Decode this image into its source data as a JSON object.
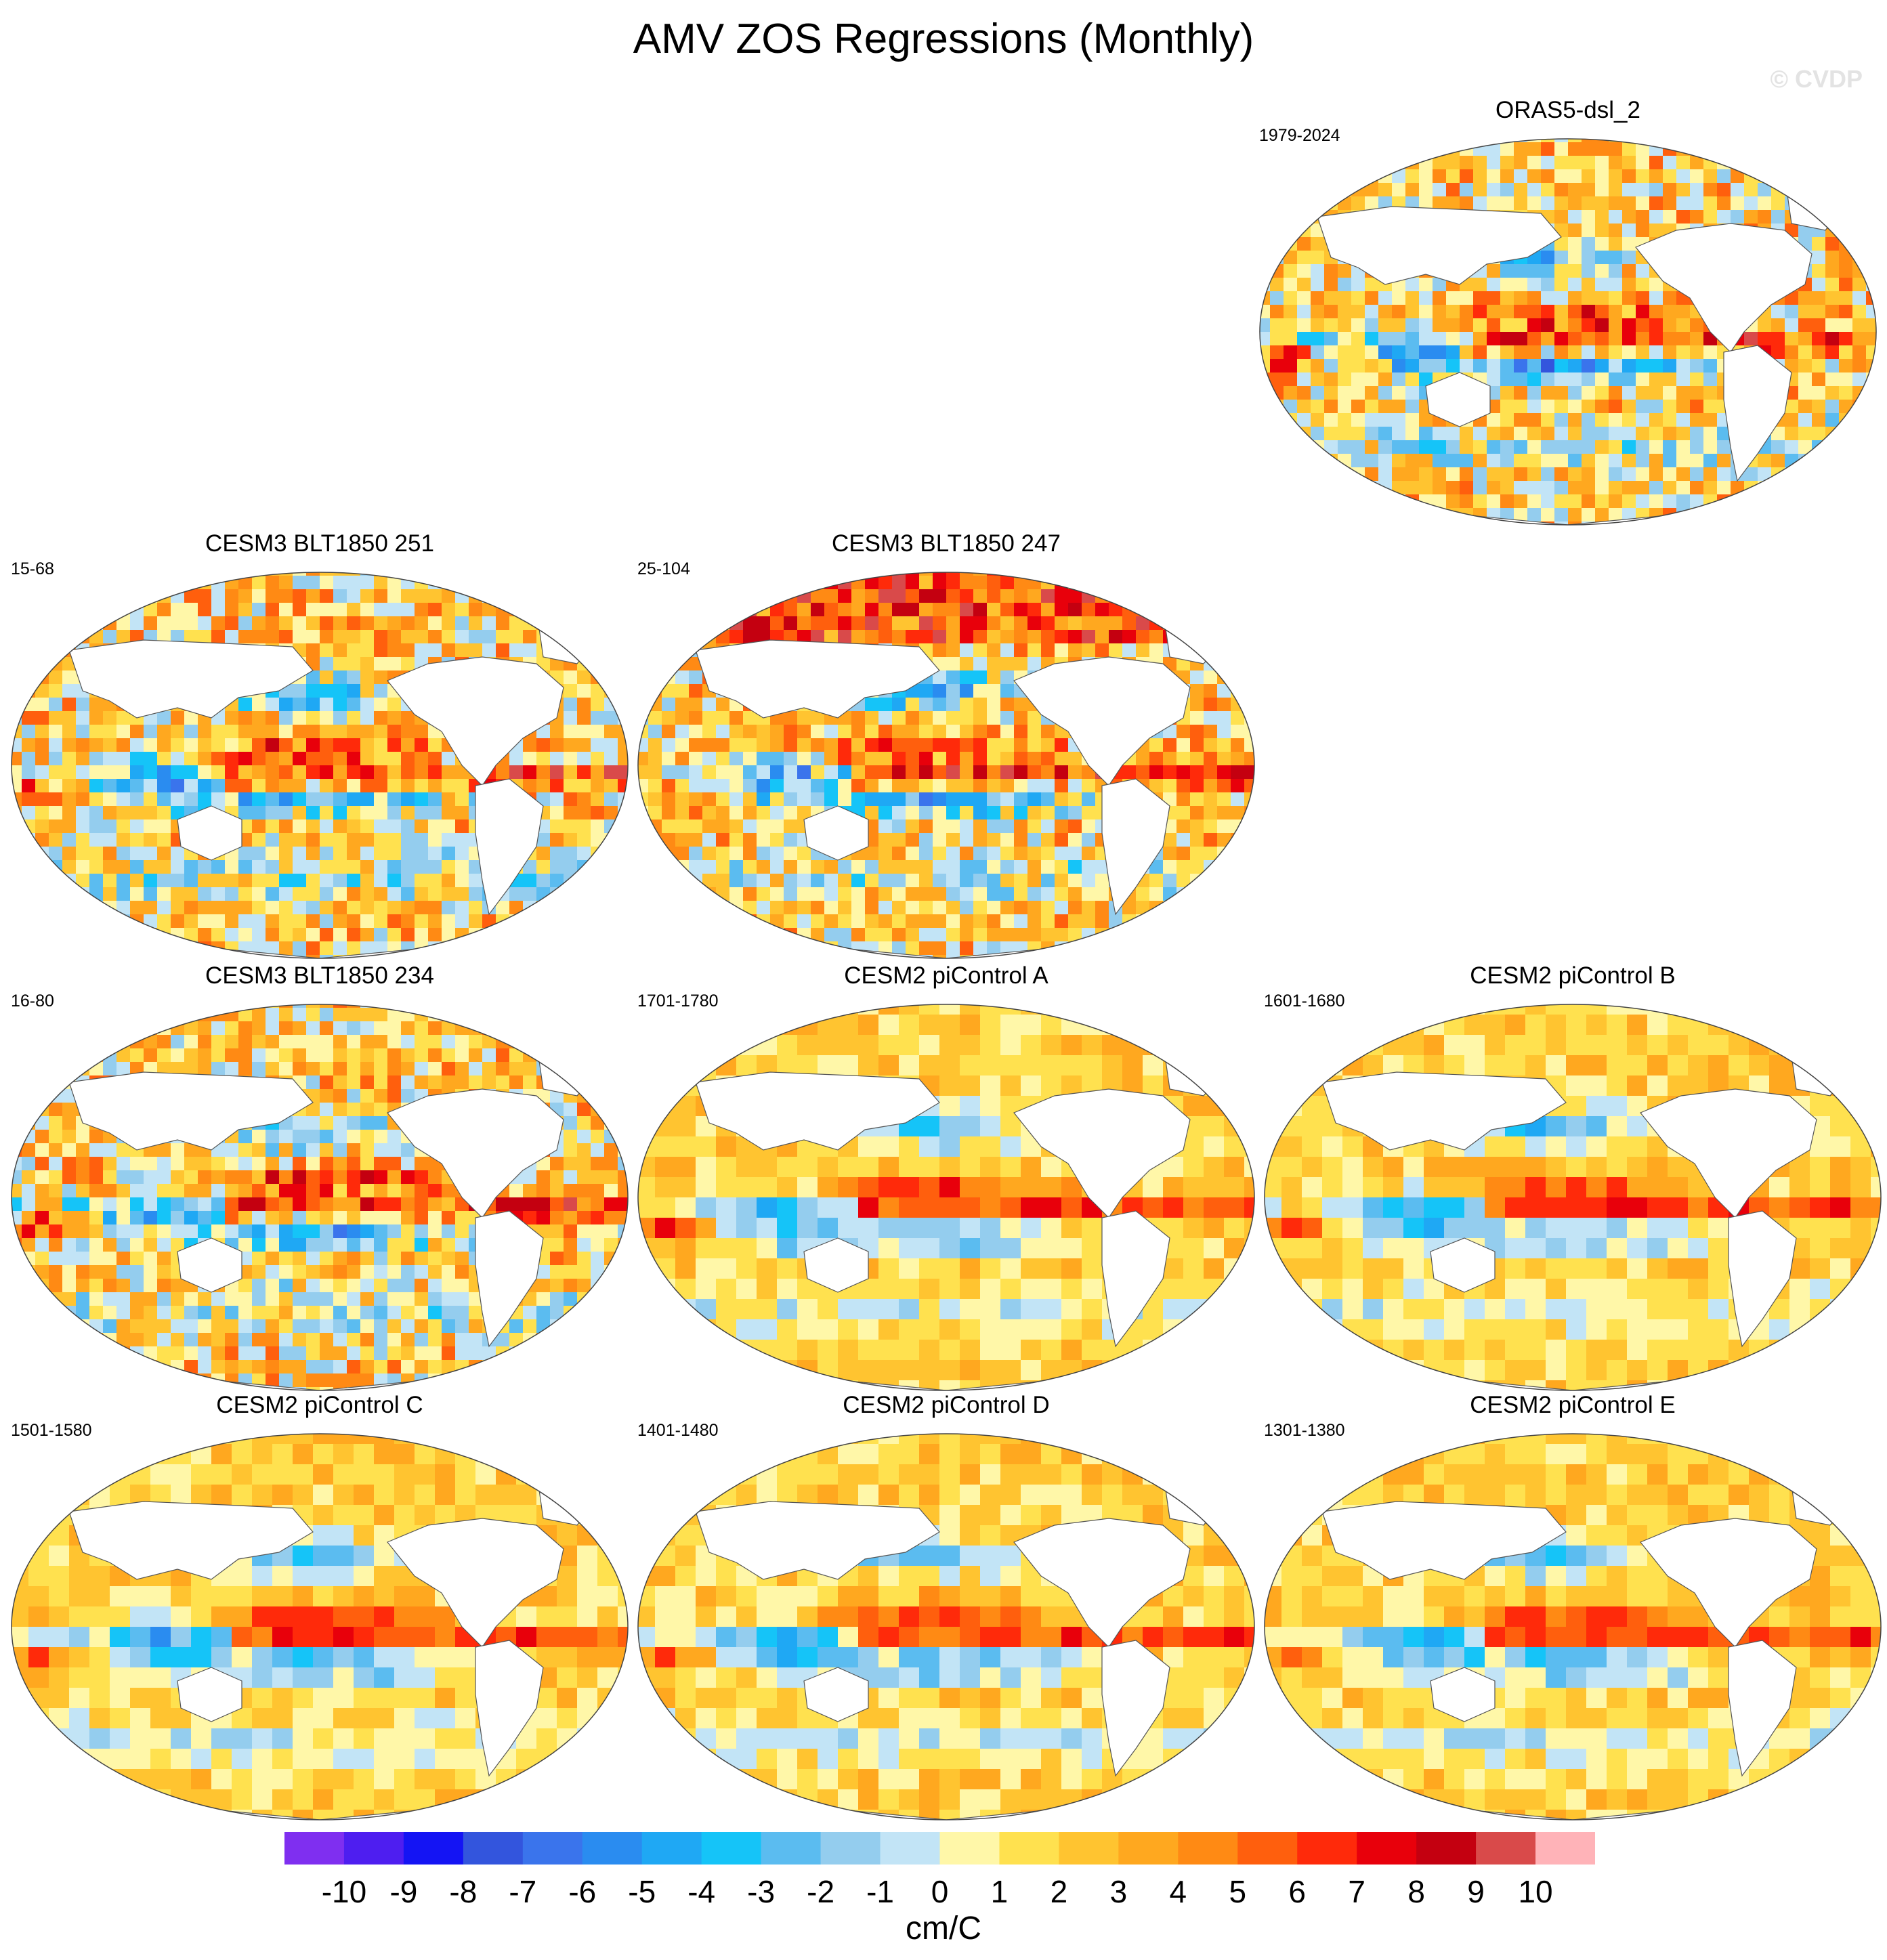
{
  "title": "AMV ZOS Regressions (Monthly)",
  "watermark": "© CVDP",
  "palette": [
    "#7f2ff0",
    "#4e1ef0",
    "#1414f4",
    "#3355dd",
    "#3a74ec",
    "#2a8cf0",
    "#1fa8f4",
    "#15c4f8",
    "#5bbcf0",
    "#94cdee",
    "#c2e4f6",
    "#fff7a8",
    "#ffe14f",
    "#ffc430",
    "#ffa81f",
    "#ff8a14",
    "#ff5f0d",
    "#ff2a0a",
    "#e8000b",
    "#c40010",
    "#d94a4a",
    "#ffb3b8"
  ],
  "colorbar": {
    "ticks": [
      "-10",
      "-9",
      "-8",
      "-7",
      "-6",
      "-5",
      "-4",
      "-3",
      "-2",
      "-1",
      "0",
      "1",
      "2",
      "3",
      "4",
      "5",
      "6",
      "7",
      "8",
      "9",
      "10"
    ],
    "unit": "cm/C"
  },
  "panels": [
    {
      "title": "ORAS5-dsl_2",
      "years": "1979-2024"
    },
    {
      "title": "CESM3 BLT1850 251",
      "years": "15-68"
    },
    {
      "title": "CESM3 BLT1850 247",
      "years": "25-104"
    },
    {
      "title": "CESM3 BLT1850 234",
      "years": "16-80"
    },
    {
      "title": "CESM2 piControl A",
      "years": "1701-1780"
    },
    {
      "title": "CESM2 piControl B",
      "years": "1601-1680"
    },
    {
      "title": "CESM2 piControl C",
      "years": "1501-1580"
    },
    {
      "title": "CESM2 piControl D",
      "years": "1401-1480"
    },
    {
      "title": "CESM2 piControl E",
      "years": "1301-1380"
    }
  ]
}
